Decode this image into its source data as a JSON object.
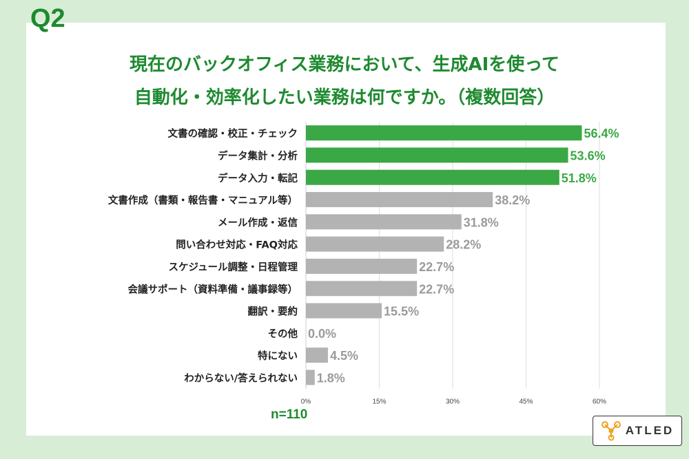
{
  "question_label": "Q2",
  "title_lines": [
    "現在のバックオフィス業務において、生成AIを使って",
    "自動化・効率化したい業務は何ですか。（複数回答）"
  ],
  "sample_size": "n=110",
  "logo": {
    "text": "ATLED",
    "mark": "molecule-icon"
  },
  "colors": {
    "highlight": "#3aa844",
    "normal": "#b3b3b3",
    "title": "#1e8a30",
    "background": "#d8edd5"
  },
  "chart_data": {
    "type": "bar",
    "orientation": "horizontal",
    "categories": [
      "文書の確認・校正・チェック",
      "データ集計・分析",
      "データ入力・転記",
      "文書作成（書類・報告書・マニュアル等）",
      "メール作成・返信",
      "問い合わせ対応・FAQ対応",
      "スケジュール調整・日程管理",
      "会議サポート（資料準備・議事録等）",
      "翻訳・要約",
      "その他",
      "特にない",
      "わからない/答えられない"
    ],
    "values": [
      56.4,
      53.6,
      51.8,
      38.2,
      31.8,
      28.2,
      22.7,
      22.7,
      15.5,
      0.0,
      4.5,
      1.8
    ],
    "value_labels": [
      "56.4%",
      "53.6%",
      "51.8%",
      "38.2%",
      "31.8%",
      "28.2%",
      "22.7%",
      "22.7%",
      "15.5%",
      "0.0%",
      "4.5%",
      "1.8%"
    ],
    "highlighted": [
      true,
      true,
      true,
      false,
      false,
      false,
      false,
      false,
      false,
      false,
      false,
      false
    ],
    "xticks": [
      0,
      15,
      30,
      45,
      60
    ],
    "xtick_labels": [
      "0%",
      "15%",
      "30%",
      "45%",
      "60%"
    ],
    "xlim": [
      0,
      60
    ],
    "grid": true
  }
}
